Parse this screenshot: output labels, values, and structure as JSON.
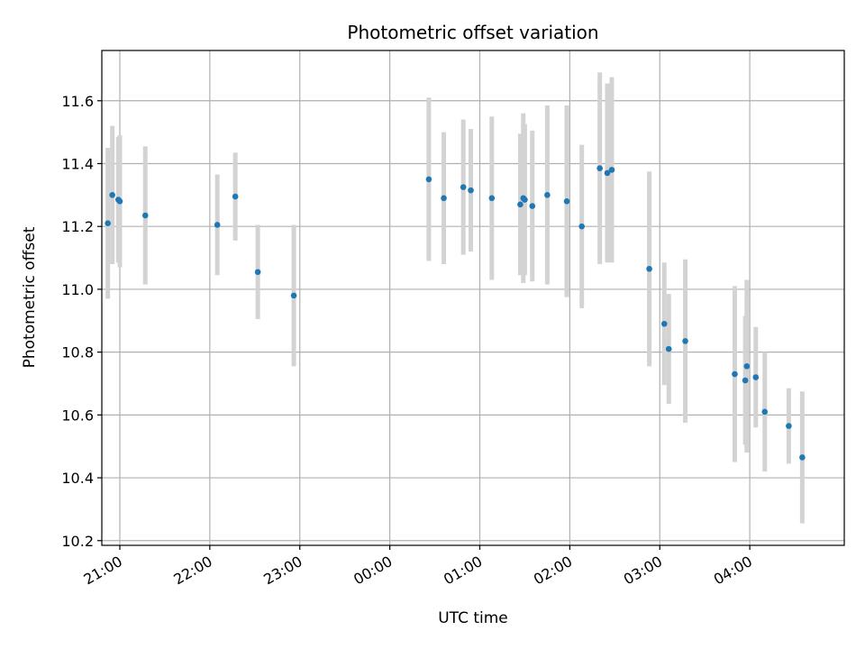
{
  "chart_data": {
    "type": "scatter",
    "title": "Photometric offset variation",
    "xlabel": "UTC time",
    "ylabel": "Photometric offset",
    "xlim": [
      "20:48",
      "29:03"
    ],
    "ylim": [
      10.185,
      11.76
    ],
    "x_ticks": [
      "21:00",
      "22:00",
      "23:00",
      "00:00",
      "01:00",
      "02:00",
      "03:00",
      "04:00"
    ],
    "y_ticks": [
      "10.2",
      "10.4",
      "10.6",
      "10.8",
      "11.0",
      "11.2",
      "11.4",
      "11.6"
    ],
    "grid": true,
    "point_color": "#1f77b4",
    "errorbar_color": "#d3d3d3",
    "points": [
      {
        "x": "20:52",
        "y": 11.21,
        "err": 0.24
      },
      {
        "x": "20:55",
        "y": 11.3,
        "err": 0.22
      },
      {
        "x": "20:59",
        "y": 11.285,
        "err": 0.2
      },
      {
        "x": "21:00",
        "y": 11.28,
        "err": 0.21
      },
      {
        "x": "21:17",
        "y": 11.235,
        "err": 0.22
      },
      {
        "x": "22:05",
        "y": 11.205,
        "err": 0.16
      },
      {
        "x": "22:17",
        "y": 11.295,
        "err": 0.14
      },
      {
        "x": "22:32",
        "y": 11.055,
        "err": 0.15
      },
      {
        "x": "22:56",
        "y": 10.98,
        "err": 0.225
      },
      {
        "x": "00:26",
        "y": 11.35,
        "err": 0.26
      },
      {
        "x": "00:36",
        "y": 11.29,
        "err": 0.21
      },
      {
        "x": "00:49",
        "y": 11.325,
        "err": 0.215
      },
      {
        "x": "00:54",
        "y": 11.315,
        "err": 0.195
      },
      {
        "x": "01:08",
        "y": 11.29,
        "err": 0.26
      },
      {
        "x": "01:27",
        "y": 11.27,
        "err": 0.225
      },
      {
        "x": "01:29",
        "y": 11.29,
        "err": 0.27
      },
      {
        "x": "01:30",
        "y": 11.285,
        "err": 0.24
      },
      {
        "x": "01:35",
        "y": 11.265,
        "err": 0.24
      },
      {
        "x": "01:45",
        "y": 11.3,
        "err": 0.285
      },
      {
        "x": "01:58",
        "y": 11.28,
        "err": 0.305
      },
      {
        "x": "02:08",
        "y": 11.2,
        "err": 0.26
      },
      {
        "x": "02:20",
        "y": 11.385,
        "err": 0.305
      },
      {
        "x": "02:25",
        "y": 11.37,
        "err": 0.285
      },
      {
        "x": "02:28",
        "y": 11.38,
        "err": 0.295
      },
      {
        "x": "02:53",
        "y": 11.065,
        "err": 0.31
      },
      {
        "x": "03:03",
        "y": 10.89,
        "err": 0.195
      },
      {
        "x": "03:06",
        "y": 10.81,
        "err": 0.175
      },
      {
        "x": "03:17",
        "y": 10.835,
        "err": 0.26
      },
      {
        "x": "03:50",
        "y": 10.73,
        "err": 0.28
      },
      {
        "x": "03:57",
        "y": 10.71,
        "err": 0.205
      },
      {
        "x": "03:58",
        "y": 10.755,
        "err": 0.275
      },
      {
        "x": "04:04",
        "y": 10.72,
        "err": 0.16
      },
      {
        "x": "04:10",
        "y": 10.61,
        "err": 0.19
      },
      {
        "x": "04:26",
        "y": 10.565,
        "err": 0.12
      },
      {
        "x": "04:35",
        "y": 10.465,
        "err": 0.21
      }
    ]
  }
}
